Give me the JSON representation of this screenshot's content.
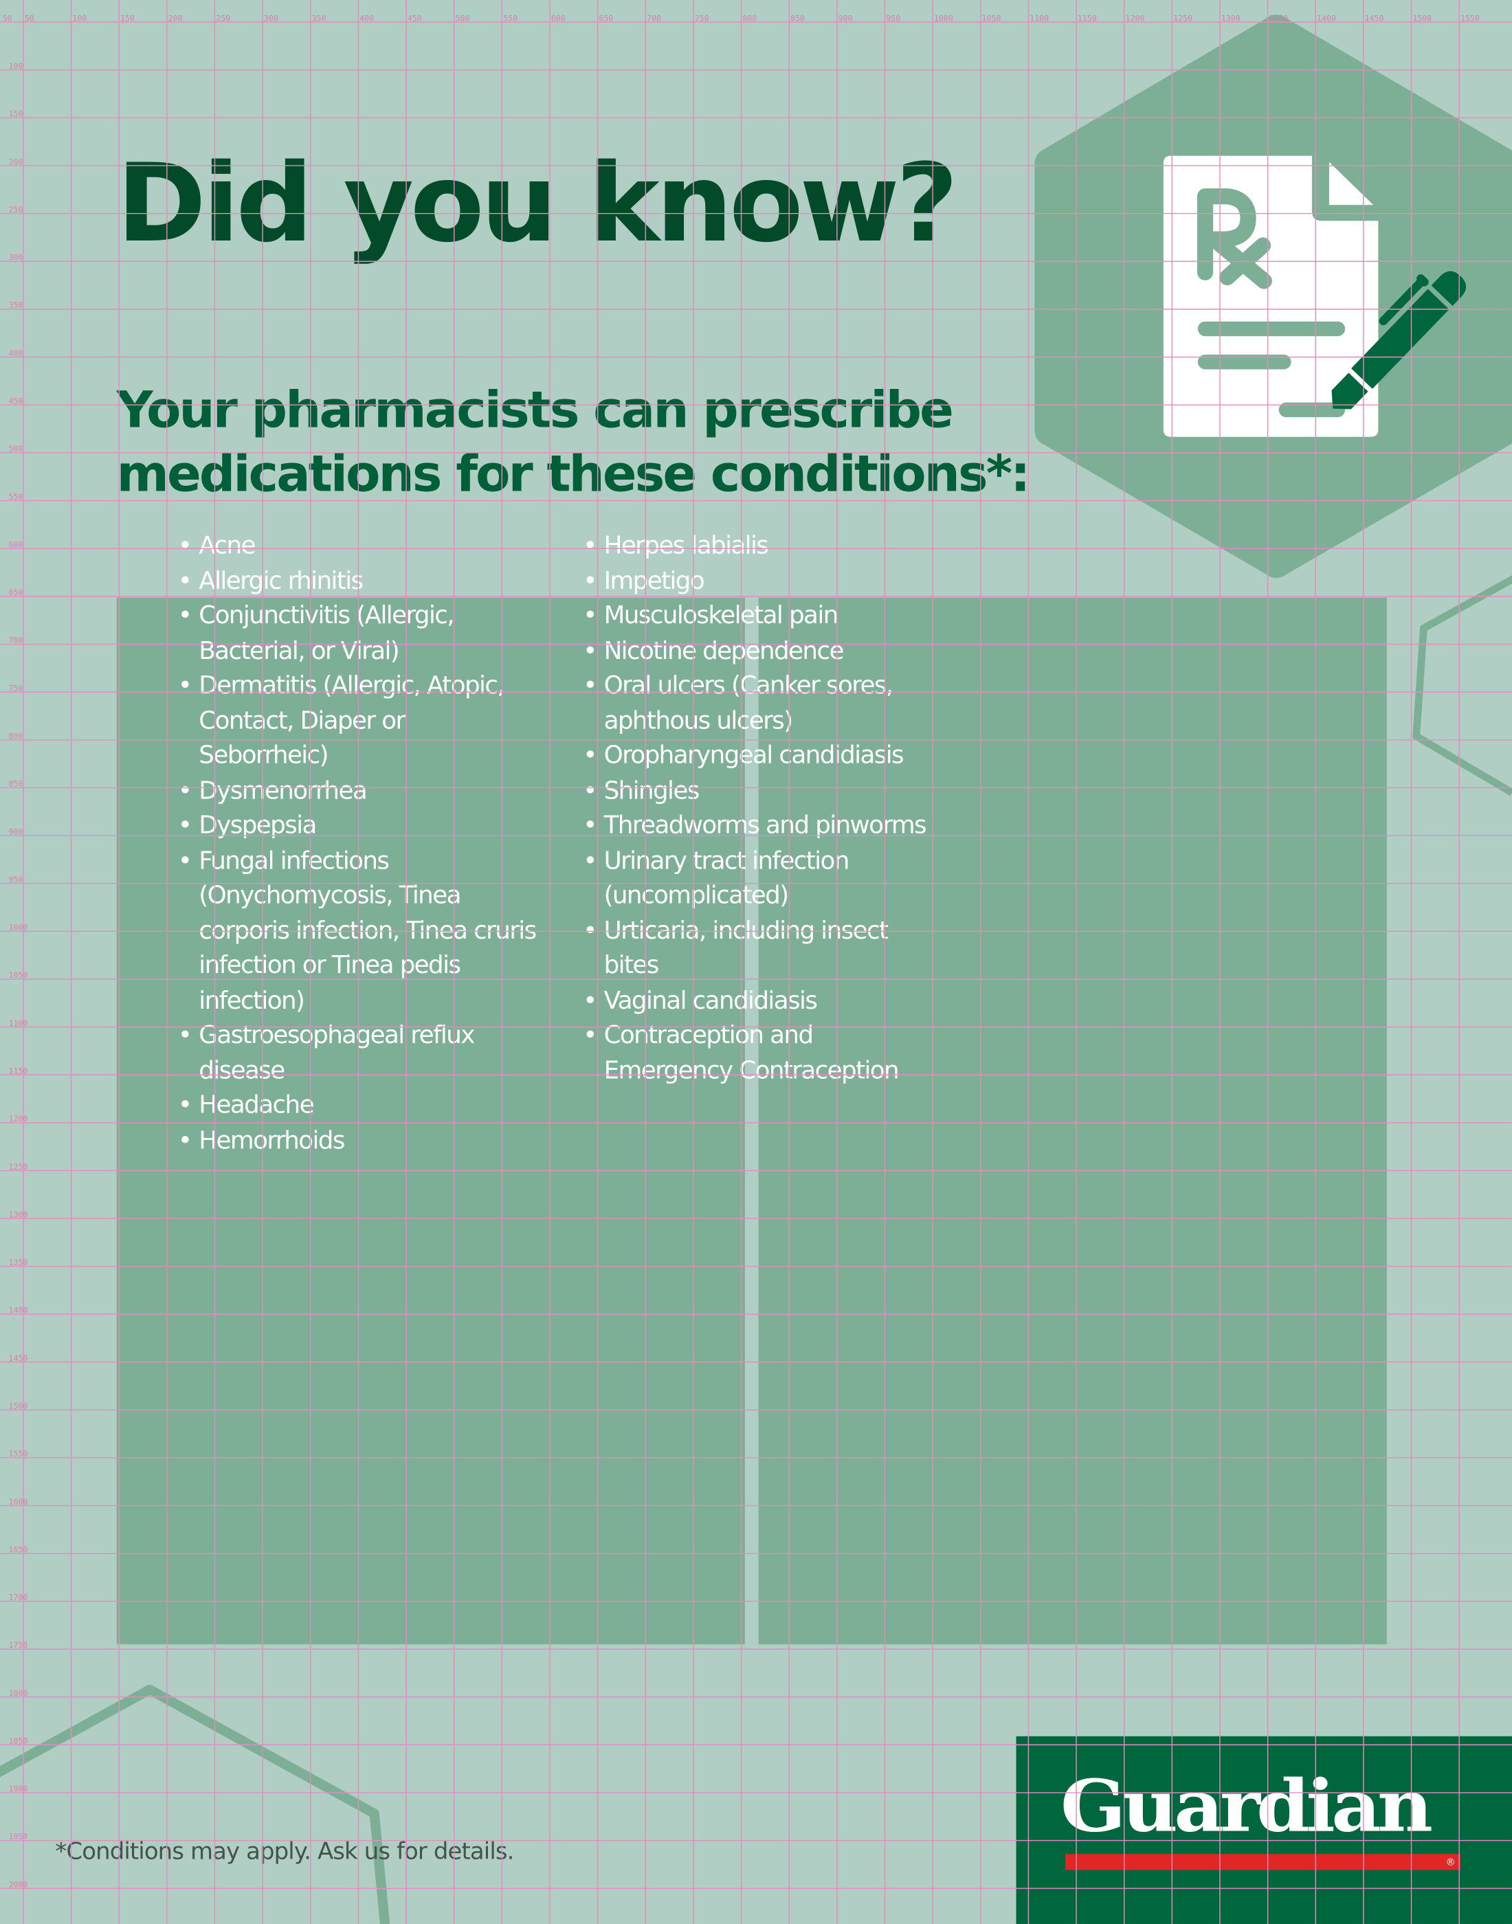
{
  "headline": "Did you know?",
  "subheadline": "Your pharmacists can prescribe medications for these conditions*:",
  "conditions_left": [
    "Acne",
    "Allergic rhinitis",
    "Conjunctivitis (Allergic, Bacterial, or Viral)",
    "Dermatitis (Allergic, Atopic, Contact, Diaper or Seborrheic)",
    "Dysmenorrhea",
    "Dyspepsia",
    "Fungal infections (Onychomycosis, Tinea corporis infection, Tinea cruris infection or Tinea pedis infection)",
    "Gastroesophageal reflux disease",
    "Headache",
    "Hemorrhoids"
  ],
  "conditions_right": [
    "Herpes labialis",
    "Impetigo",
    "Musculoskeletal pain",
    "Nicotine dependence",
    "Oral ulcers (Canker sores, aphthous ulcers)",
    "Oropharyngeal candidiasis",
    "Shingles",
    "Threadworms and pinworms",
    "Urinary tract infection (uncomplicated)",
    "Urticaria, including insect bites",
    "Vaginal candidiasis",
    "Contraception and Emergency Contraception"
  ],
  "footnote": "*Conditions may apply. Ask us for details.",
  "logo": {
    "wordmark": "Guardian",
    "registered": "®"
  },
  "icons": {
    "hero": "prescription-document-with-pen-icon"
  },
  "colors": {
    "background": "#b0cec4",
    "panel": "#7daf97",
    "headline": "#034a2a",
    "subheadline": "#005f38",
    "brand_green": "#00663d",
    "brand_red": "#e02626",
    "guide_lines": "#e58bbd"
  },
  "guides": {
    "corner_label": "50",
    "x_labels": [
      "50",
      "100",
      "150",
      "200",
      "250",
      "300",
      "350",
      "400",
      "450",
      "500",
      "550",
      "600",
      "650",
      "700",
      "750",
      "800",
      "850",
      "900",
      "950",
      "1000",
      "1050",
      "1100",
      "1150",
      "1200",
      "1250",
      "1300",
      "1350",
      "1400",
      "1450",
      "1500",
      "1550"
    ],
    "y_labels": [
      "100",
      "150",
      "200",
      "250",
      "300",
      "350",
      "400",
      "450",
      "500",
      "550",
      "600",
      "650",
      "700",
      "750",
      "800",
      "850",
      "900",
      "950",
      "1000",
      "1050",
      "1100",
      "1150",
      "1200",
      "1250",
      "1300",
      "1350",
      "1400",
      "1450",
      "1500",
      "1550",
      "1600",
      "1650",
      "1700",
      "1750",
      "1800",
      "1850",
      "1900",
      "1950",
      "2000"
    ]
  }
}
